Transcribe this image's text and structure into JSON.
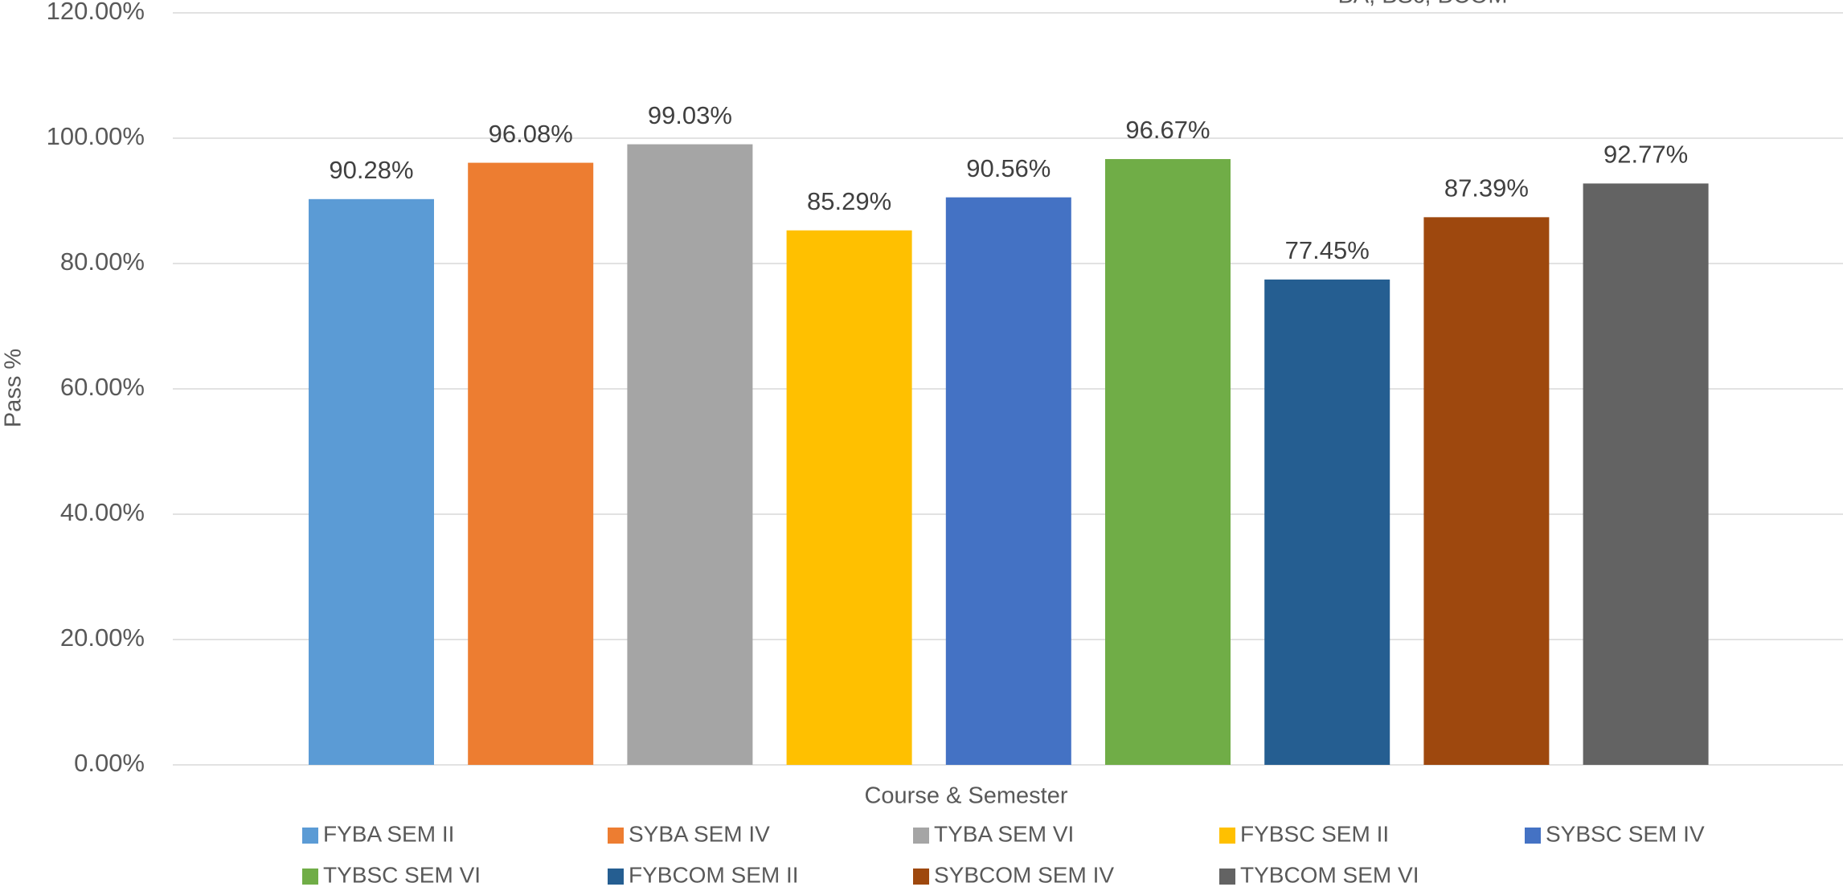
{
  "chart_data": {
    "type": "bar",
    "title": "BA, BSc, BCOM",
    "x_label": "Course & Semester",
    "y_label": "Pass %",
    "categories": [
      null
    ],
    "series": [
      {
        "name": "FYBA SEM II",
        "color": "#5b9bd5",
        "values": [
          90.28
        ],
        "value_labels": [
          "90.28%"
        ]
      },
      {
        "name": "SYBA SEM IV",
        "color": "#ed7d31",
        "values": [
          96.08
        ],
        "value_labels": [
          "96.08%"
        ]
      },
      {
        "name": "TYBA SEM VI",
        "color": "#a5a5a5",
        "values": [
          99.03
        ],
        "value_labels": [
          "99.03%"
        ]
      },
      {
        "name": "FYBSC SEM II",
        "color": "#ffc000",
        "values": [
          85.29
        ],
        "value_labels": [
          "85.29%"
        ]
      },
      {
        "name": "SYBSC SEM IV",
        "color": "#4472c4",
        "values": [
          90.56
        ],
        "value_labels": [
          "90.56%"
        ]
      },
      {
        "name": "TYBSC SEM VI",
        "color": "#70ad47",
        "values": [
          96.67
        ],
        "value_labels": [
          "96.67%"
        ]
      },
      {
        "name": "FYBCOM SEM II",
        "color": "#255e91",
        "values": [
          77.45
        ],
        "value_labels": [
          "77.45%"
        ]
      },
      {
        "name": "SYBCOM SEM IV",
        "color": "#9e480e",
        "values": [
          87.39
        ],
        "value_labels": [
          "87.39%"
        ]
      },
      {
        "name": "TYBCOM SEM VI",
        "color": "#636363",
        "values": [
          92.77
        ],
        "value_labels": [
          "92.77%"
        ]
      }
    ],
    "ylim": [
      0,
      120
    ],
    "yticks": [
      {
        "value": 0,
        "label": "0.00%"
      },
      {
        "value": 20,
        "label": "20.00%"
      },
      {
        "value": 40,
        "label": "40.00%"
      },
      {
        "value": 60,
        "label": "60.00%"
      },
      {
        "value": 80,
        "label": "80.00%"
      },
      {
        "value": 100,
        "label": "100.00%"
      },
      {
        "value": 120,
        "label": "120.00%"
      }
    ],
    "grid": true,
    "legend": "bottom"
  }
}
